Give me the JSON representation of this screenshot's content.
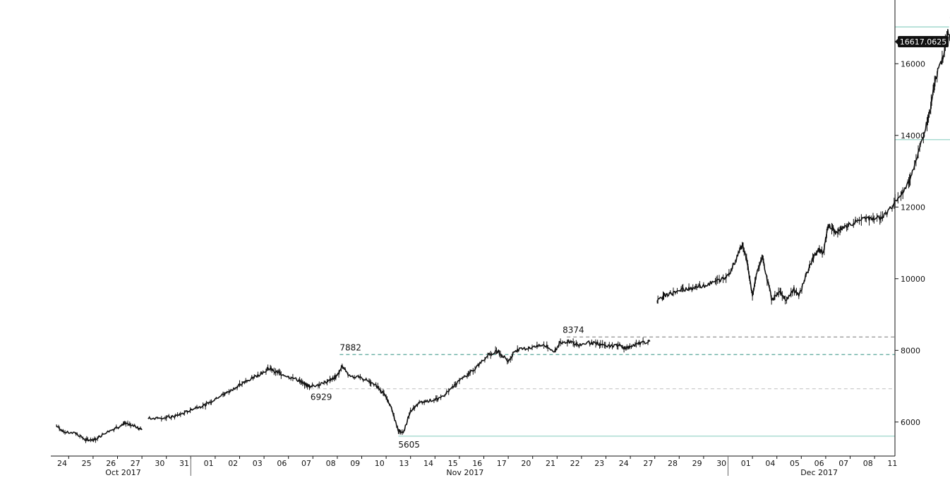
{
  "chart_data": {
    "type": "line",
    "title": "",
    "xlabel": "",
    "ylabel": "",
    "ylim": [
      5050,
      17700
    ],
    "y_ticks": [
      6000,
      8000,
      10000,
      12000,
      14000,
      16000
    ],
    "y_tick_labels": [
      "6000",
      "8000",
      "10000",
      "12000",
      "14000",
      "16000"
    ],
    "grid": false,
    "axis_position": "right",
    "day_labels": [
      "24",
      "25",
      "26",
      "27",
      "30",
      "31",
      "01",
      "02",
      "03",
      "06",
      "07",
      "08",
      "09",
      "10",
      "13",
      "14",
      "15",
      "16",
      "17",
      "20",
      "21",
      "22",
      "23",
      "24",
      "27",
      "28",
      "29",
      "30",
      "01",
      "04",
      "05",
      "06",
      "07",
      "08",
      "11"
    ],
    "month_labels": [
      "Oct 2017",
      "Nov 2017",
      "Dec 2017"
    ],
    "month_label_days": [
      2.5,
      16.5,
      31.0
    ],
    "month_separators_after_day": [
      5,
      27
    ],
    "series": [
      {
        "values_by_day": [
          [
            0,
            5900
          ],
          [
            0.3,
            5720
          ],
          [
            0.8,
            5680
          ],
          [
            1.2,
            5500
          ],
          [
            1.6,
            5520
          ],
          [
            2.0,
            5700
          ],
          [
            2.5,
            5850
          ],
          [
            2.8,
            5950
          ],
          [
            3.2,
            5880
          ],
          [
            3.5,
            5780
          ],
          [
            3.75,
            6100
          ],
          [
            4.3,
            6120
          ],
          [
            4.8,
            6150
          ],
          [
            5.2,
            6250
          ],
          [
            5.6,
            6380
          ],
          [
            6.1,
            6480
          ],
          [
            6.5,
            6650
          ],
          [
            6.9,
            6800
          ],
          [
            7.3,
            6950
          ],
          [
            7.8,
            7150
          ],
          [
            8.3,
            7320
          ],
          [
            8.7,
            7500
          ],
          [
            9.0,
            7400
          ],
          [
            9.4,
            7300
          ],
          [
            9.8,
            7200
          ],
          [
            10.2,
            7050
          ],
          [
            10.4,
            6990
          ],
          [
            10.8,
            7050
          ],
          [
            11.2,
            7150
          ],
          [
            11.5,
            7300
          ],
          [
            11.7,
            7550
          ],
          [
            12.0,
            7300
          ],
          [
            12.4,
            7230
          ],
          [
            12.8,
            7150
          ],
          [
            13.2,
            6950
          ],
          [
            13.5,
            6700
          ],
          [
            13.7,
            6400
          ],
          [
            14.0,
            5750
          ],
          [
            14.2,
            5700
          ],
          [
            14.5,
            6300
          ],
          [
            14.9,
            6550
          ],
          [
            15.3,
            6600
          ],
          [
            15.7,
            6650
          ],
          [
            16.1,
            6900
          ],
          [
            16.5,
            7150
          ],
          [
            16.9,
            7350
          ],
          [
            17.3,
            7600
          ],
          [
            17.7,
            7900
          ],
          [
            18.1,
            7980
          ],
          [
            18.5,
            7700
          ],
          [
            18.8,
            8000
          ],
          [
            19.2,
            8050
          ],
          [
            19.6,
            8100
          ],
          [
            20.0,
            8150
          ],
          [
            20.4,
            7950
          ],
          [
            20.6,
            8200
          ],
          [
            21.0,
            8250
          ],
          [
            21.4,
            8150
          ],
          [
            21.8,
            8220
          ],
          [
            22.2,
            8180
          ],
          [
            22.6,
            8120
          ],
          [
            23.0,
            8150
          ],
          [
            23.3,
            8050
          ],
          [
            23.5,
            8100
          ],
          [
            23.9,
            8200
          ],
          [
            24.3,
            8250
          ],
          [
            24.6,
            9350
          ],
          [
            24.9,
            9550
          ],
          [
            25.3,
            9600
          ],
          [
            25.7,
            9700
          ],
          [
            26.1,
            9750
          ],
          [
            26.5,
            9800
          ],
          [
            26.9,
            9900
          ],
          [
            27.3,
            10000
          ],
          [
            27.6,
            10200
          ],
          [
            27.9,
            10650
          ],
          [
            28.1,
            11000
          ],
          [
            28.3,
            10400
          ],
          [
            28.5,
            9550
          ],
          [
            28.7,
            10200
          ],
          [
            28.9,
            10600
          ],
          [
            29.1,
            10000
          ],
          [
            29.3,
            9400
          ],
          [
            29.6,
            9650
          ],
          [
            29.9,
            9400
          ],
          [
            30.2,
            9700
          ],
          [
            30.4,
            9500
          ],
          [
            30.7,
            10100
          ],
          [
            31.0,
            10600
          ],
          [
            31.2,
            10800
          ],
          [
            31.4,
            10700
          ],
          [
            31.6,
            11500
          ],
          [
            31.9,
            11300
          ],
          [
            32.2,
            11400
          ],
          [
            32.6,
            11550
          ],
          [
            33.0,
            11650
          ],
          [
            33.4,
            11700
          ],
          [
            33.8,
            11700
          ],
          [
            34.1,
            11900
          ],
          [
            34.5,
            12300
          ],
          [
            34.9,
            12700
          ],
          [
            35.2,
            13300
          ],
          [
            35.5,
            14000
          ],
          [
            35.8,
            14800
          ],
          [
            36.0,
            15600
          ],
          [
            36.3,
            16200
          ],
          [
            36.5,
            16900
          ],
          [
            36.7,
            16300
          ],
          [
            36.9,
            15700
          ],
          [
            37.1,
            15200
          ],
          [
            37.3,
            14900
          ],
          [
            37.5,
            15200
          ],
          [
            37.7,
            14800
          ],
          [
            37.9,
            15400
          ],
          [
            38.1,
            15100
          ],
          [
            38.3,
            15700
          ],
          [
            38.6,
            16200
          ],
          [
            38.85,
            16700
          ],
          [
            39.05,
            16617
          ]
        ]
      }
    ],
    "annotations": [
      {
        "label": "7882",
        "day": 11.6,
        "value": 7882
      },
      {
        "label": "6929",
        "day": 10.4,
        "value": 6929
      },
      {
        "label": "5605",
        "day": 14.0,
        "value": 5605
      },
      {
        "label": "8374",
        "day": 20.9,
        "value": 8374
      },
      {
        "label": "17027",
        "day": 36.55,
        "value": 17027
      },
      {
        "label": "13881",
        "day": 37.1,
        "value": 13881
      }
    ],
    "reference_lines": [
      {
        "value": 8374,
        "from_day": 20.9,
        "style": "dashed",
        "color": "#888888"
      },
      {
        "value": 7882,
        "from_day": 11.6,
        "style": "dashed",
        "color": "#5aa89a"
      },
      {
        "value": 6929,
        "from_day": 10.4,
        "style": "dashed",
        "color": "#cccccc"
      },
      {
        "value": 5605,
        "from_day": 14.0,
        "style": "solid",
        "color": "#8fd1c4"
      },
      {
        "value": 17027,
        "from_day": 36.55,
        "style": "solid",
        "color": "#8fd1c4"
      },
      {
        "value": 13881,
        "from_day": 37.1,
        "style": "solid",
        "color": "#8fd1c4"
      }
    ],
    "last_price": {
      "label": "16617.0625",
      "value": 16617.0625
    },
    "colors": {
      "price": "#111111",
      "axis": "#111111",
      "last_price_bg": "#111111"
    }
  }
}
